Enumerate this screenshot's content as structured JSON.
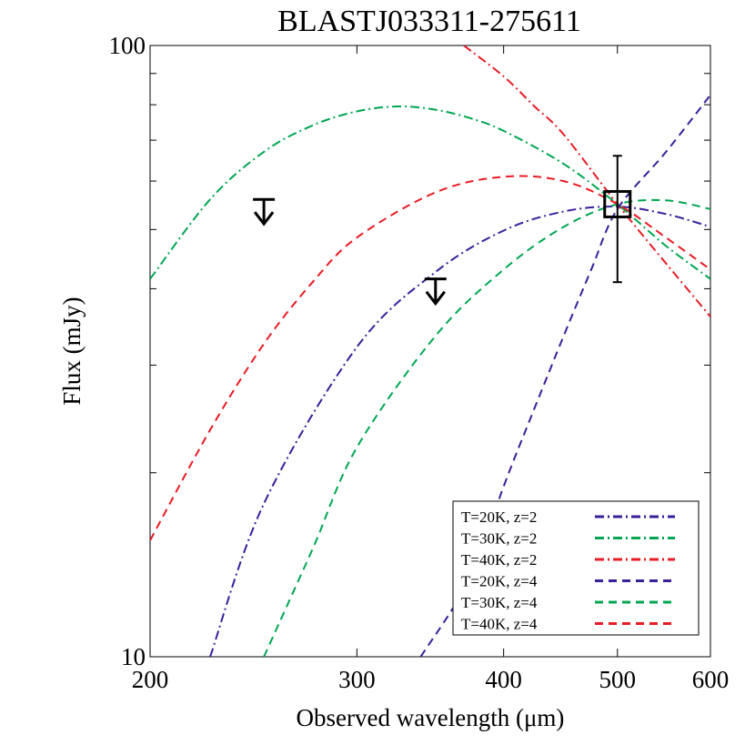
{
  "chart_data": {
    "type": "line",
    "title": "BLASTJ033311-275611",
    "xlabel": "Observed wavelength (μm)",
    "ylabel": "Flux (mJy)",
    "xscale": "log",
    "yscale": "log",
    "xlim": [
      200,
      600
    ],
    "ylim": [
      10,
      100
    ],
    "x_ticks": [
      200,
      300,
      400,
      500,
      600
    ],
    "y_ticks": [
      10,
      100
    ],
    "y_minor_ticks": [
      20,
      30,
      40,
      50,
      60,
      70,
      80,
      90
    ],
    "legend_placement": "bottom-right",
    "series": [
      {
        "name": "T=20K, z=2",
        "color": "#3a1f9a",
        "dash": "dashdot",
        "x": [
          225,
          250,
          300,
          350,
          400,
          450,
          500,
          550,
          600
        ],
        "y": [
          10,
          17.8,
          32.1,
          42.6,
          49.8,
          53.5,
          54.5,
          53.0,
          50.5
        ]
      },
      {
        "name": "T=30K, z=2",
        "color": "#00a651",
        "dash": "dashdot",
        "x": [
          200,
          225,
          250,
          275,
          300,
          325,
          350,
          375,
          400,
          450,
          500,
          550,
          600
        ],
        "y": [
          41.5,
          56,
          67,
          74,
          78,
          79.5,
          78.5,
          76,
          72.5,
          64,
          55,
          47,
          41.5
        ]
      },
      {
        "name": "T=40K, z=2",
        "color": "#e81c24",
        "dash": "dashdot",
        "x": [
          370,
          400,
          425,
          450,
          500,
          550,
          600
        ],
        "y": [
          100,
          89,
          79.5,
          71.5,
          55,
          44,
          36
        ]
      },
      {
        "name": "T=20K, z=4",
        "color": "#3a1f9a",
        "dash": "dashed",
        "x": [
          340,
          375,
          400,
          425,
          450,
          475,
          500,
          550,
          600
        ],
        "y": [
          10,
          13.5,
          19,
          25.5,
          33.5,
          43,
          54,
          67,
          83
        ]
      },
      {
        "name": "T=30K, z=4",
        "color": "#00a651",
        "dash": "dashed",
        "x": [
          250,
          275,
          300,
          350,
          400,
          450,
          500,
          550,
          600
        ],
        "y": [
          10,
          15,
          22,
          33.5,
          43,
          50.5,
          55,
          55.8,
          54
        ]
      },
      {
        "name": "T=40K, z=4",
        "color": "#e81c24",
        "dash": "dashed",
        "x": [
          200,
          225,
          250,
          275,
          300,
          350,
          400,
          450,
          500,
          550,
          600
        ],
        "y": [
          15.5,
          23.5,
          32.5,
          41,
          48.5,
          57.5,
          61,
          60,
          55,
          48.5,
          43
        ]
      }
    ],
    "upper_limits": [
      {
        "x": 250,
        "y": 56
      },
      {
        "x": 350,
        "y": 41.5
      }
    ],
    "detection": {
      "x": 500,
      "y": 55,
      "yerr_low": 41,
      "yerr_high": 66
    }
  }
}
